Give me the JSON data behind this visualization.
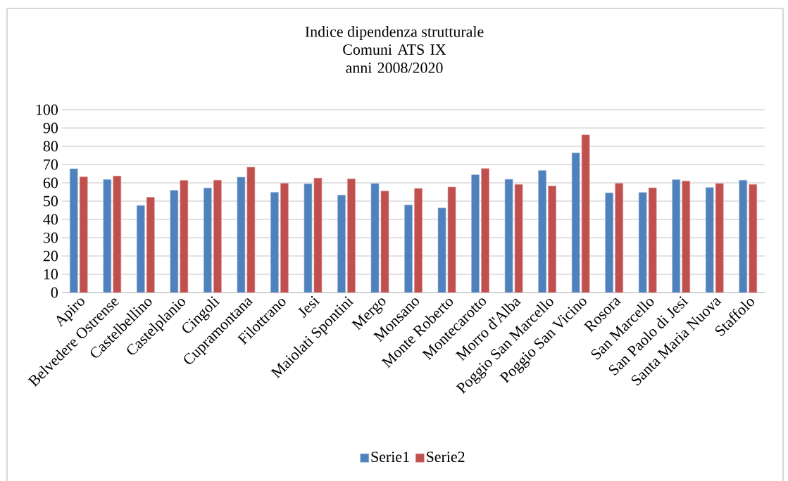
{
  "chart_data": {
    "type": "bar",
    "title": "Indice dipendenza strutturale",
    "subtitle": "Comuni ATS IX anni 2008/2020",
    "categories": [
      "Apiro",
      "Belvedere Ostrense",
      "Castelbellino",
      "Castelplanio",
      "Cingoli",
      "Cupramontana",
      "Filottrano",
      "Jesi",
      "Maiolati Spontini",
      "Mergo",
      "Monsano",
      "Monte Roberto",
      "Montecarotto",
      "Morro d'Alba",
      "Poggio San Marcello",
      "Poggio San Vicino",
      "Rosora",
      "San Marcello",
      "San Paolo di Jesi",
      "Santa Maria Nuova",
      "Staffolo"
    ],
    "series": [
      {
        "name": "Serie1",
        "color": "#4f81bd",
        "values": [
          67.7,
          61.8,
          47.6,
          55.9,
          57.2,
          63.1,
          54.8,
          59.4,
          53.3,
          59.6,
          47.9,
          46.2,
          64.4,
          61.9,
          66.7,
          76.4,
          54.5,
          54.7,
          61.7,
          57.4,
          61.4
        ]
      },
      {
        "name": "Serie2",
        "color": "#c0504d",
        "values": [
          63.3,
          63.7,
          52.1,
          61.3,
          61.4,
          68.6,
          59.7,
          62.6,
          62.2,
          55.5,
          56.9,
          57.7,
          67.8,
          59.1,
          58.3,
          86.2,
          59.7,
          57.3,
          61.0,
          59.6,
          59.1
        ]
      }
    ],
    "ylim": [
      0,
      100
    ],
    "yticks": [
      0,
      10,
      20,
      30,
      40,
      50,
      60,
      70,
      80,
      90,
      100
    ],
    "grid": "y",
    "legend": "bottom"
  }
}
